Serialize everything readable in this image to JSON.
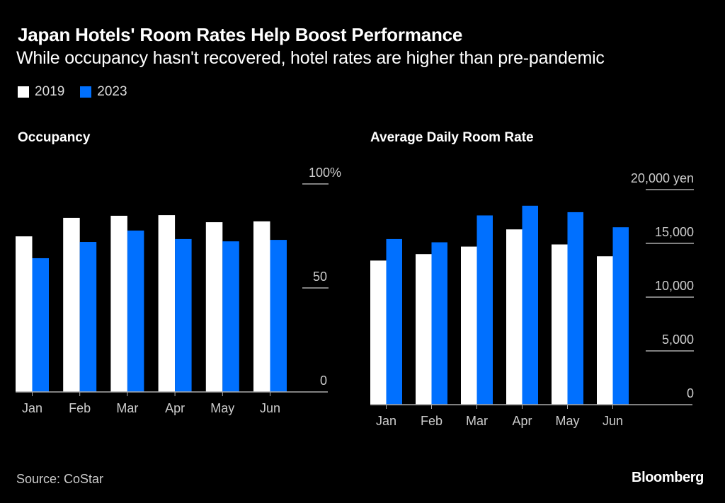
{
  "header": {
    "title": "Japan Hotels' Room Rates Help Boost Performance",
    "subtitle": "While occupancy hasn't recovered, hotel rates are higher than pre-pandemic"
  },
  "legend": [
    {
      "label": "2019",
      "color": "#ffffff"
    },
    {
      "label": "2023",
      "color": "#0070ff"
    }
  ],
  "footer": {
    "source": "Source: CoStar",
    "brand": "Bloomberg"
  },
  "chart_data": [
    {
      "type": "bar",
      "title": "Occupancy",
      "xlabel": "",
      "ylabel": "",
      "unit": "%",
      "categories": [
        "Jan",
        "Feb",
        "Mar",
        "Apr",
        "May",
        "Jun"
      ],
      "series": [
        {
          "name": "2019",
          "color": "#ffffff",
          "values": [
            74.8,
            83.7,
            84.7,
            85.0,
            81.6,
            82.0
          ]
        },
        {
          "name": "2023",
          "color": "#0070ff",
          "values": [
            64.3,
            72.1,
            77.6,
            73.5,
            72.4,
            73.1
          ]
        }
      ],
      "ylim": [
        0,
        100
      ],
      "yticks": [
        0,
        50,
        100
      ],
      "ytick_labels": [
        "0",
        "50",
        "100%"
      ],
      "grid": true,
      "legend_position": "top-left"
    },
    {
      "type": "bar",
      "title": "Average Daily Room Rate",
      "xlabel": "",
      "ylabel": "",
      "unit": "yen",
      "categories": [
        "Jan",
        "Feb",
        "Mar",
        "Apr",
        "May",
        "Jun"
      ],
      "series": [
        {
          "name": "2019",
          "color": "#ffffff",
          "values": [
            13400,
            14000,
            14700,
            16300,
            14900,
            13800
          ]
        },
        {
          "name": "2023",
          "color": "#0070ff",
          "values": [
            15400,
            15100,
            17600,
            18500,
            17900,
            16500
          ]
        }
      ],
      "ylim": [
        0,
        20000
      ],
      "yticks": [
        0,
        5000,
        10000,
        15000,
        20000
      ],
      "ytick_labels": [
        "0",
        "5,000",
        "10,000",
        "15,000",
        "20,000 yen"
      ],
      "grid": true,
      "legend_position": "top-left"
    }
  ]
}
